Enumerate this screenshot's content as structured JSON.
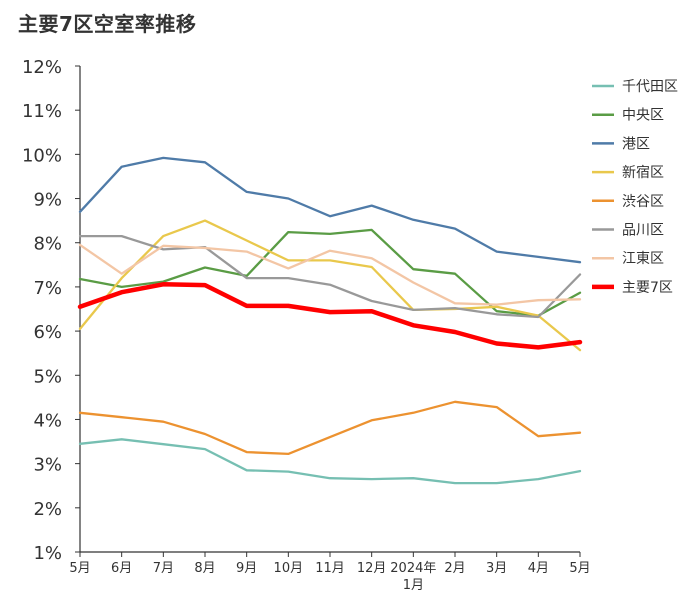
{
  "title": "主要7区空室率推移",
  "chart_data": {
    "type": "line",
    "title": "主要7区空室率推移",
    "xlabel": "",
    "ylabel": "",
    "categories": [
      "5月",
      "6月",
      "7月",
      "8月",
      "9月",
      "10月",
      "11月",
      "12月",
      "2024年 1月",
      "2月",
      "3月",
      "4月",
      "5月"
    ],
    "x_tick_labels": [
      {
        "lines": [
          "5月"
        ]
      },
      {
        "lines": [
          "6月"
        ]
      },
      {
        "lines": [
          "7月"
        ]
      },
      {
        "lines": [
          "8月"
        ]
      },
      {
        "lines": [
          "9月"
        ]
      },
      {
        "lines": [
          "10月"
        ]
      },
      {
        "lines": [
          "11月"
        ]
      },
      {
        "lines": [
          "12月"
        ]
      },
      {
        "lines": [
          "2024年",
          "1月"
        ]
      },
      {
        "lines": [
          "2月"
        ]
      },
      {
        "lines": [
          "3月"
        ]
      },
      {
        "lines": [
          "4月"
        ]
      },
      {
        "lines": [
          "5月"
        ]
      }
    ],
    "y_ticks": [
      1,
      2,
      3,
      4,
      5,
      6,
      7,
      8,
      9,
      10,
      11,
      12
    ],
    "y_tick_suffix": "%",
    "ylim": [
      1,
      12
    ],
    "grid": false,
    "legend_position": "right",
    "series": [
      {
        "name": "千代田区",
        "color": "#76bfb2",
        "values": [
          3.45,
          3.55,
          3.44,
          3.33,
          2.85,
          2.82,
          2.67,
          2.65,
          2.67,
          2.56,
          2.56,
          2.65,
          2.83
        ]
      },
      {
        "name": "中央区",
        "color": "#5a9c45",
        "values": [
          7.18,
          7.0,
          7.12,
          7.44,
          7.25,
          8.24,
          8.2,
          8.29,
          7.4,
          7.3,
          6.45,
          6.35,
          6.87
        ]
      },
      {
        "name": "港区",
        "color": "#4f7ba8",
        "values": [
          8.7,
          9.72,
          9.92,
          9.82,
          9.15,
          9.0,
          8.6,
          8.84,
          8.52,
          8.32,
          7.8,
          7.68,
          7.56
        ]
      },
      {
        "name": "新宿区",
        "color": "#e9c84c",
        "values": [
          6.05,
          7.2,
          8.15,
          8.5,
          8.05,
          7.6,
          7.6,
          7.45,
          6.48,
          6.5,
          6.55,
          6.35,
          5.57
        ]
      },
      {
        "name": "渋谷区",
        "color": "#ec9230",
        "values": [
          4.15,
          4.05,
          3.95,
          3.67,
          3.26,
          3.22,
          3.6,
          3.98,
          4.15,
          4.4,
          4.28,
          3.62,
          3.7
        ]
      },
      {
        "name": "品川区",
        "color": "#999999",
        "values": [
          8.15,
          8.15,
          7.85,
          7.9,
          7.2,
          7.2,
          7.05,
          6.68,
          6.48,
          6.52,
          6.38,
          6.32,
          7.28
        ]
      },
      {
        "name": "江東区",
        "color": "#f3c6a5",
        "values": [
          7.95,
          7.3,
          7.93,
          7.88,
          7.8,
          7.42,
          7.82,
          7.65,
          7.1,
          6.63,
          6.6,
          6.7,
          6.72
        ]
      },
      {
        "name": "主要7区",
        "color": "#ff0000",
        "bold": true,
        "values": [
          6.55,
          6.88,
          7.06,
          7.04,
          6.57,
          6.57,
          6.43,
          6.45,
          6.13,
          5.98,
          5.72,
          5.63,
          5.75
        ]
      }
    ]
  }
}
